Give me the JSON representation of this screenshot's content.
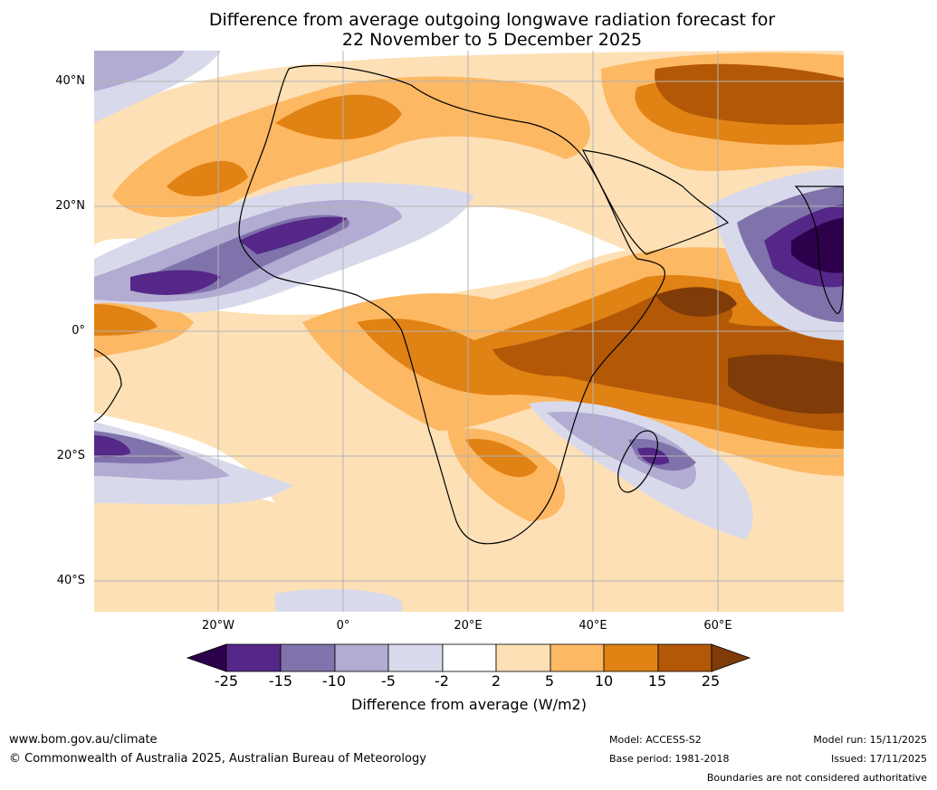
{
  "title": {
    "line1": "Difference from average outgoing longwave radiation forecast for",
    "line2": "22 November to 5 December 2025"
  },
  "axes": {
    "lat_labels": [
      "40°N",
      "20°N",
      "0°",
      "20°S",
      "40°S"
    ],
    "lon_labels": [
      "20°W",
      "0°",
      "20°E",
      "40°E",
      "60°E"
    ]
  },
  "colorbar": {
    "ticks": [
      "-25",
      "-15",
      "-10",
      "-5",
      "-2",
      "2",
      "5",
      "10",
      "15",
      "25"
    ],
    "colors": [
      "#2d004b",
      "#542788",
      "#8073ac",
      "#b2abd2",
      "#d8daeb",
      "#ffffff",
      "#fee0b6",
      "#fdb863",
      "#e08214",
      "#b35806",
      "#7f3b08"
    ],
    "label": "Difference from average (W/m2)"
  },
  "footer": {
    "url": "www.bom.gov.au/climate",
    "copyright": "© Commonwealth of Australia 2025, Australian Bureau of Meteorology",
    "model": "Model: ACCESS-S2",
    "base_period": "Base period: 1981-2018",
    "model_run": "Model run: 15/11/2025",
    "issued": "Issued: 17/11/2025",
    "disclaimer": "Boundaries are not considered authoritative"
  }
}
